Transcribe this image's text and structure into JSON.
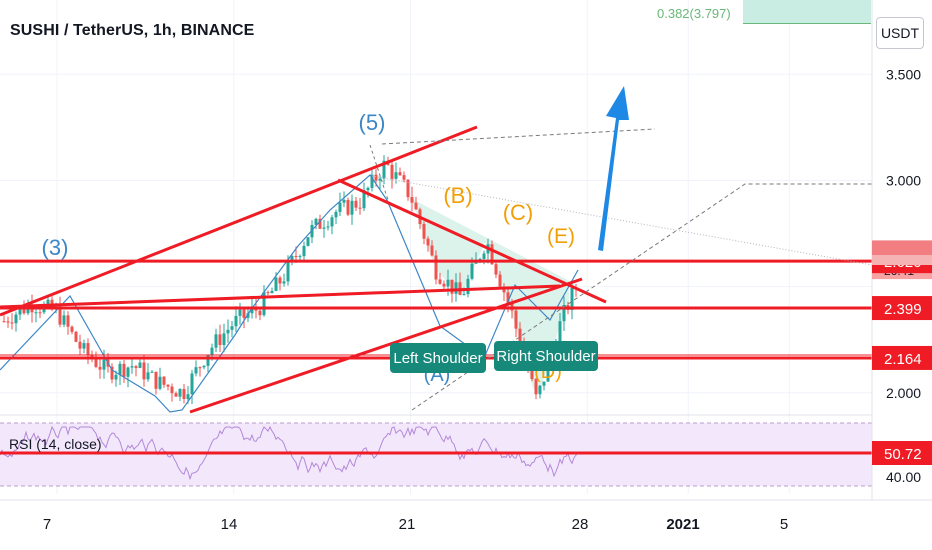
{
  "header": {
    "symbol_title": "SUSHI / TetherUS, 1h, BINANCE",
    "currency_button": "USDT"
  },
  "fib": {
    "label": "0.382(3.797)",
    "color": "#6ab879"
  },
  "colors": {
    "up": "#26a69a",
    "down": "#ef5350",
    "trendline": "#ef1c25",
    "wave_blue": "#3d86c6",
    "wave_orange": "#f29f05",
    "arrow": "#1e88e5",
    "rsi": "#b388d9",
    "rsi_band": "#f3e8fb",
    "pattern_fill": "#cdeee3",
    "label_bg": "#16897a"
  },
  "chart_data": {
    "type": "candlestick",
    "symbol": "SUSHI / TetherUS",
    "interval": "1h",
    "exchange": "BINANCE",
    "currency": "USDT",
    "ylim": [
      1.9,
      3.85
    ],
    "x_ticks": [
      "7",
      "14",
      "21",
      "28",
      "2021",
      "5"
    ],
    "y_ticks": [
      "3.500",
      "3.000",
      "2.000"
    ],
    "price_levels": [
      {
        "label": "2.620",
        "value": 2.62,
        "color": "#ef1c25"
      },
      {
        "label": "2.399",
        "value": 2.399,
        "color": "#ef1c25"
      },
      {
        "label": "2.164",
        "value": 2.164,
        "color": "#ef1c25"
      }
    ],
    "countdown_label": "26:41",
    "close_path": [
      [
        "2020-12-03",
        2.18
      ],
      [
        "2020-12-04",
        2.22
      ],
      [
        "2020-12-05",
        2.35
      ],
      [
        "2020-12-06",
        2.42
      ],
      [
        "2020-12-07",
        2.38
      ],
      [
        "2020-12-08",
        2.2
      ],
      [
        "2020-12-09",
        2.1
      ],
      [
        "2020-12-10",
        2.13
      ],
      [
        "2020-12-11",
        2.05
      ],
      [
        "2020-12-12",
        2.0
      ],
      [
        "2020-12-13",
        2.2
      ],
      [
        "2020-12-14",
        2.33
      ],
      [
        "2020-12-15",
        2.4
      ],
      [
        "2020-12-16",
        2.55
      ],
      [
        "2020-12-17",
        2.76
      ],
      [
        "2020-12-18",
        2.85
      ],
      [
        "2020-12-19",
        2.9
      ],
      [
        "2020-12-20",
        3.08
      ],
      [
        "2020-12-21",
        2.93
      ],
      [
        "2020-12-22",
        2.58
      ],
      [
        "2020-12-23",
        2.45
      ],
      [
        "2020-12-24",
        2.72
      ],
      [
        "2020-12-25",
        2.38
      ],
      [
        "2020-12-26",
        1.96
      ],
      [
        "2020-12-27",
        2.35
      ],
      [
        "2020-12-28",
        2.62
      ],
      [
        "2020-12-29",
        2.48
      ],
      [
        "2020-12-30",
        2.45
      ],
      [
        "2020-12-31",
        2.55
      ],
      [
        "2021-01-01",
        2.66
      ]
    ],
    "wave_labels": [
      {
        "text": "(3)",
        "color": "#3d86c6"
      },
      {
        "text": "(5)",
        "color": "#3d86c6"
      },
      {
        "text": "(B)",
        "color": "#f29f05"
      },
      {
        "text": "(C)",
        "color": "#f29f05"
      },
      {
        "text": "(E)",
        "color": "#f29f05"
      },
      {
        "text": "(A)",
        "color": "#3d86c6"
      },
      {
        "text": "(D)",
        "color": "#f29f05"
      }
    ],
    "pattern_labels": [
      "Left Shoulder",
      "Right Shoulder"
    ],
    "rsi": {
      "label": "RSI (14, close)",
      "value_label": "50.72",
      "value": 50.72,
      "y_tick": "40.00",
      "upper": 70,
      "lower": 30
    }
  }
}
